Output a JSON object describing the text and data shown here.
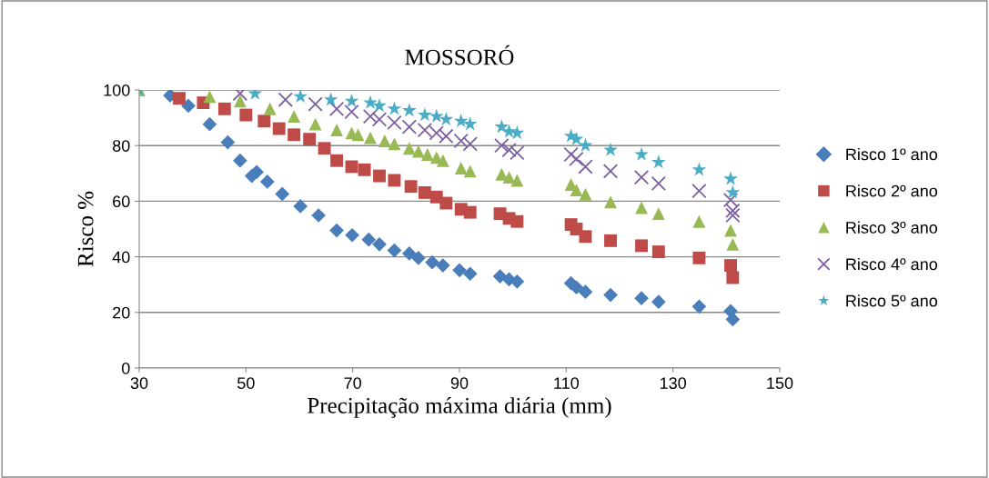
{
  "chart_data": {
    "type": "scatter",
    "title": "MOSSORÓ",
    "xlabel": "Precipitação máxima diária (mm)",
    "ylabel": "Risco %",
    "xlim": [
      30,
      150
    ],
    "xticks": [
      30,
      50,
      70,
      90,
      110,
      130,
      150
    ],
    "ylim": [
      0,
      100
    ],
    "yticks": [
      0,
      20,
      40,
      60,
      80,
      100
    ],
    "grid": "y",
    "legend": "right",
    "series": [
      {
        "name": "Risco 1º ano",
        "color": "#4a7ebb",
        "marker": "diamond",
        "x": [
          35.8,
          39.2,
          43.2,
          46.6,
          48.9,
          51.1,
          52,
          54,
          56.8,
          60.2,
          63.6,
          67,
          69.9,
          73,
          75,
          77.8,
          80.6,
          82.3,
          84.9,
          86.9,
          90,
          92,
          97.6,
          99.3,
          100.8,
          110.9,
          111.9,
          113.6,
          118.3,
          124.1,
          127.3,
          134.9,
          140.8,
          141.2
        ],
        "values": [
          98,
          94.3,
          87.7,
          81.2,
          74.6,
          69.1,
          70.5,
          67,
          62.6,
          58.2,
          54.9,
          49.5,
          47.8,
          46.2,
          44.5,
          42.3,
          41.2,
          39.6,
          38,
          36.9,
          35.2,
          33.9,
          33,
          31.9,
          31.1,
          30.5,
          29,
          27.4,
          26.3,
          25.1,
          23.8,
          22.1,
          20.5,
          17.5
        ]
      },
      {
        "name": "Risco 2º ano",
        "color": "#be4b48",
        "marker": "square",
        "x": [
          37.5,
          42,
          46,
          50,
          53.4,
          56.2,
          59,
          61.9,
          64.7,
          67,
          69.8,
          72.2,
          75,
          77.8,
          80.9,
          83.5,
          85.7,
          87.5,
          90.3,
          92,
          97.6,
          99.3,
          100.8,
          110.9,
          111.9,
          113.6,
          118.3,
          124.1,
          127.3,
          134.9,
          140.8,
          141.2
        ],
        "values": [
          97,
          95.4,
          93.2,
          91,
          88.8,
          86.1,
          83.9,
          82.3,
          79,
          74.6,
          72.4,
          71.3,
          69.1,
          67.5,
          65.3,
          63.1,
          61.5,
          59.3,
          57.1,
          56,
          55.5,
          53.8,
          52.7,
          51.6,
          50,
          47.3,
          45.8,
          44,
          41.8,
          39.6,
          36.9,
          32.5
        ]
      },
      {
        "name": "Risco 3º ano",
        "color": "#98b954",
        "marker": "triangle",
        "x": [
          30,
          43.2,
          48.9,
          54.5,
          59,
          63,
          67,
          69.8,
          71,
          73.3,
          76,
          77.8,
          80.6,
          82.3,
          84,
          85.7,
          86.9,
          90.3,
          92,
          97.9,
          99.3,
          100.8,
          110.9,
          111.9,
          113.6,
          118.3,
          124.1,
          127.3,
          134.9,
          140.8,
          141.2
        ],
        "values": [
          100,
          97.6,
          96,
          93.2,
          90.5,
          87.7,
          85.6,
          84.5,
          83.9,
          82.8,
          81.7,
          80.6,
          79,
          77.9,
          76.8,
          75.7,
          74.6,
          71.9,
          70.8,
          69.7,
          68.6,
          67.5,
          66,
          64,
          62.5,
          59.7,
          57.7,
          55.5,
          52.7,
          49.5,
          44.5
        ]
      },
      {
        "name": "Risco 4º ano",
        "color": "#7d60a0",
        "marker": "cross",
        "x": [
          48.9,
          57.4,
          63,
          67,
          69.8,
          73.3,
          75,
          77.8,
          80.6,
          83.5,
          85.7,
          87.5,
          90.3,
          92,
          97.9,
          99.3,
          100.8,
          110.9,
          111.9,
          113.6,
          118.3,
          124.1,
          127.3,
          134.9,
          140.8,
          141.2,
          141.2
        ],
        "values": [
          98.7,
          96.5,
          94.9,
          93.2,
          92.1,
          90.5,
          89.4,
          88.3,
          86.7,
          85.6,
          84.5,
          83.4,
          81.7,
          80.6,
          80,
          78.4,
          77.4,
          76.8,
          75.2,
          72.4,
          70.8,
          68.6,
          66.4,
          63.7,
          60.4,
          56.6,
          54.9
        ]
      },
      {
        "name": "Risco 5º ano",
        "color": "#4bacc6",
        "marker": "star",
        "x": [
          30,
          51.7,
          60.2,
          65.9,
          69.8,
          73.3,
          75,
          77.8,
          80.6,
          83.5,
          85.7,
          87.5,
          90.3,
          92,
          97.9,
          99.3,
          100.8,
          110.9,
          111.9,
          113.6,
          118.3,
          124.1,
          127.3,
          134.9,
          140.8,
          141.2
        ],
        "values": [
          100,
          98.7,
          97.6,
          96.5,
          96,
          95.4,
          94.3,
          93.2,
          92.6,
          91,
          90.5,
          89.4,
          88.8,
          87.7,
          86.7,
          85,
          84.5,
          83.4,
          82.3,
          80,
          78.4,
          76.8,
          74,
          71.3,
          68,
          63.1
        ]
      }
    ]
  }
}
